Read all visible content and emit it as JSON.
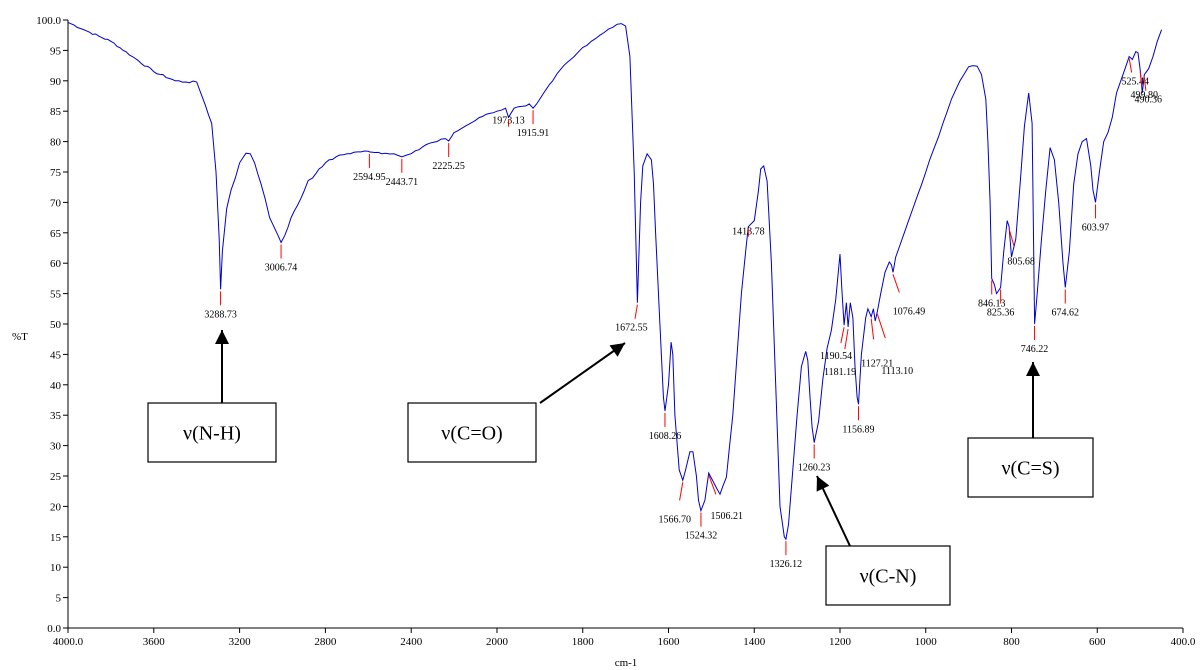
{
  "chart_data": {
    "type": "line",
    "title": "",
    "xlabel": "cm-1",
    "ylabel": "%T",
    "xlim": [
      4000,
      400
    ],
    "ylim": [
      0,
      100
    ],
    "x_ticks": [
      "4000.0",
      "3600",
      "3200",
      "2800",
      "2400",
      "2000",
      "1800",
      "1600",
      "1400",
      "1200",
      "1000",
      "800",
      "600",
      "400.0"
    ],
    "y_ticks": [
      "0.0",
      "5",
      "10",
      "15",
      "20",
      "25",
      "30",
      "35",
      "40",
      "45",
      "50",
      "55",
      "60",
      "65",
      "70",
      "75",
      "80",
      "85",
      "90",
      "95",
      "100.0"
    ],
    "grid": false,
    "line_color": "#0000cc",
    "peak_color": "#ff0000",
    "series": [
      {
        "x": [
          4000,
          3900,
          3800,
          3700,
          3600,
          3500,
          3450,
          3400,
          3360,
          3330,
          3310,
          3295,
          3288.73,
          3280,
          3260,
          3240,
          3220,
          3200,
          3170,
          3150,
          3130,
          3100,
          3080,
          3060,
          3040,
          3020,
          3006.74,
          2990,
          2960,
          2930,
          2900,
          2880,
          2860,
          2830,
          2800,
          2750,
          2700,
          2650,
          2600,
          2594.95,
          2570,
          2520,
          2480,
          2443.71,
          2420,
          2380,
          2330,
          2280,
          2240,
          2225.25,
          2200,
          2150,
          2100,
          2050,
          2000,
          1980,
          1973.13,
          1960,
          1940,
          1925,
          1915.91,
          1900,
          1870,
          1850,
          1820,
          1800,
          1780,
          1760,
          1740,
          1720,
          1710,
          1700,
          1690,
          1680,
          1672.55,
          1665,
          1660,
          1650,
          1640,
          1635,
          1630,
          1620,
          1612,
          1608.26,
          1600,
          1594,
          1590,
          1585,
          1575,
          1566.7,
          1560,
          1550,
          1543,
          1535,
          1530,
          1524.32,
          1515,
          1506.21,
          1495,
          1480,
          1465,
          1450,
          1440,
          1430,
          1420,
          1413.78,
          1400,
          1390,
          1385,
          1378,
          1370,
          1360,
          1350,
          1340,
          1330,
          1326.12,
          1320,
          1310,
          1300,
          1290,
          1280,
          1275,
          1270,
          1265,
          1260.23,
          1250,
          1240,
          1230,
          1220,
          1210,
          1200,
          1195,
          1190.54,
          1185,
          1181.19,
          1176,
          1170,
          1165,
          1160,
          1156.89,
          1150,
          1140,
          1135,
          1127.21,
          1122,
          1118,
          1113.1,
          1105,
          1095,
          1085,
          1080,
          1076.49,
          1070,
          1060,
          1050,
          1040,
          1030,
          1020,
          1000,
          980,
          960,
          940,
          920,
          900,
          890,
          880,
          870,
          860,
          855,
          850,
          846.13,
          840,
          835,
          830,
          825.36,
          818,
          810,
          805.68,
          800,
          790,
          780,
          770,
          760,
          752,
          746.22,
          740,
          730,
          720,
          710,
          700,
          690,
          680,
          674.62,
          665,
          655,
          645,
          635,
          625,
          615,
          610,
          603.97,
          595,
          585,
          575,
          565,
          555,
          545,
          535,
          525.44,
          518,
          510,
          505,
          499.8,
          495,
          490.36,
          480,
          470,
          460,
          450
        ],
        "y": [
          99.6,
          98,
          96.5,
          94,
          91.5,
          90,
          89.8,
          89.8,
          86,
          83,
          75,
          64,
          55.7,
          62,
          69,
          72,
          74,
          76.5,
          78.1,
          78,
          76.5,
          73,
          70.5,
          67.5,
          66,
          64.5,
          63.4,
          64.5,
          67.5,
          69.5,
          71.8,
          73.6,
          74,
          75.5,
          76.5,
          77.5,
          78,
          78.3,
          78.4,
          78.3,
          78.2,
          78.1,
          78,
          77.5,
          77.8,
          78.5,
          79.5,
          80,
          80.5,
          80.1,
          81.5,
          82.5,
          83.5,
          84.5,
          85,
          85.5,
          84,
          85.5,
          85.8,
          86.2,
          85.5,
          87,
          90,
          92,
          94,
          95.5,
          96.5,
          97.5,
          98.5,
          99.3,
          99.4,
          99,
          94,
          75,
          53.5,
          70,
          76,
          78,
          77,
          73,
          65,
          50,
          38,
          35.7,
          40,
          47,
          45,
          35,
          26,
          24.3,
          26,
          29,
          29,
          25,
          21,
          19.3,
          21,
          25.5,
          24,
          22,
          24.8,
          35,
          45,
          55,
          62,
          66,
          67,
          72,
          75.5,
          76,
          73.5,
          60,
          40,
          20,
          15,
          14.6,
          17,
          26,
          35,
          43,
          45.5,
          44,
          38,
          33,
          30.5,
          34,
          41,
          46,
          49,
          54,
          61.5,
          55,
          49.8,
          53.5,
          49.5,
          53.5,
          51,
          43,
          38,
          36.8,
          45,
          51,
          52.5,
          51.2,
          52.5,
          50.5,
          52,
          55,
          58.5,
          60.2,
          59.7,
          58.5,
          61,
          63,
          65,
          67,
          69,
          71,
          75,
          79,
          83,
          87,
          90,
          92.3,
          92.5,
          92.4,
          91,
          87,
          80,
          70,
          57.5,
          56.5,
          55,
          55.5,
          56,
          62,
          67,
          66,
          61,
          64,
          73,
          82.5,
          88,
          83,
          50,
          55,
          64,
          72,
          79,
          77,
          70,
          60,
          56,
          62,
          73,
          78,
          80,
          80.5,
          76,
          72,
          70,
          75,
          80,
          81.5,
          84,
          88,
          90,
          92,
          94,
          93.5,
          94.8,
          94.6,
          91.8,
          88,
          91,
          92,
          94,
          96.5,
          98.4
        ]
      }
    ],
    "peaks": [
      {
        "x": 3288.73,
        "label": "3288.73"
      },
      {
        "x": 3006.74,
        "label": "3006.74"
      },
      {
        "x": 2594.95,
        "label": "2594.95"
      },
      {
        "x": 2443.71,
        "label": "2443.71"
      },
      {
        "x": 2225.25,
        "label": "2225.25"
      },
      {
        "x": 1973.13,
        "label": "1973.13"
      },
      {
        "x": 1915.91,
        "label": "1915.91"
      },
      {
        "x": 1672.55,
        "label": "1672.55"
      },
      {
        "x": 1608.26,
        "label": "1608.26"
      },
      {
        "x": 1566.7,
        "label": "1566.70"
      },
      {
        "x": 1524.32,
        "label": "1524.32"
      },
      {
        "x": 1506.21,
        "label": "1506.21"
      },
      {
        "x": 1413.78,
        "label": "1413.78"
      },
      {
        "x": 1326.12,
        "label": "1326.12"
      },
      {
        "x": 1260.23,
        "label": "1260.23"
      },
      {
        "x": 1190.54,
        "label": "1190.54"
      },
      {
        "x": 1181.19,
        "label": "1181.19"
      },
      {
        "x": 1156.89,
        "label": "1156.89"
      },
      {
        "x": 1127.21,
        "label": "1127.21"
      },
      {
        "x": 1113.1,
        "label": "1113.10"
      },
      {
        "x": 1076.49,
        "label": "1076.49"
      },
      {
        "x": 846.13,
        "label": "846.13"
      },
      {
        "x": 825.36,
        "label": "825.36"
      },
      {
        "x": 805.68,
        "label": "805.68"
      },
      {
        "x": 746.22,
        "label": "746.22"
      },
      {
        "x": 674.62,
        "label": "674.62"
      },
      {
        "x": 603.97,
        "label": "603.97"
      },
      {
        "x": 525.44,
        "label": "525.44"
      },
      {
        "x": 499.8,
        "label": "499.80"
      },
      {
        "x": 490.36,
        "label": "490.36"
      }
    ],
    "annotations": [
      {
        "text": "ν(N-H)",
        "points_to": 3288.73
      },
      {
        "text": "ν(C=O)",
        "points_to": 1672.55
      },
      {
        "text": "ν(C-N)",
        "points_to": 1260.23
      },
      {
        "text": "ν(C=S)",
        "points_to": 746.22
      }
    ]
  }
}
